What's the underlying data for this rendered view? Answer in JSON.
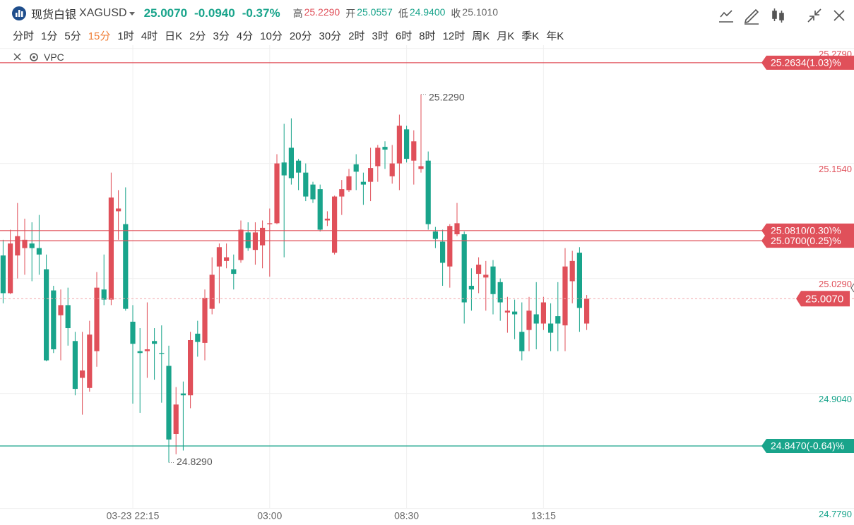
{
  "header": {
    "symbol_name": "现货白银",
    "symbol": "XAGUSD",
    "price": "25.0070",
    "change": "-0.0940",
    "change_pct": "-0.37%",
    "stats": [
      {
        "label": "高",
        "value": "25.2290",
        "color": "#e0505a"
      },
      {
        "label": "开",
        "value": "25.0557",
        "color": "#19a48b"
      },
      {
        "label": "低",
        "value": "24.9400",
        "color": "#19a48b"
      },
      {
        "label": "收",
        "value": "25.1010",
        "color": "#666666"
      }
    ]
  },
  "timeframes": [
    "分时",
    "1分",
    "5分",
    "15分",
    "1时",
    "4时",
    "日K",
    "2分",
    "3分",
    "4分",
    "10分",
    "20分",
    "30分",
    "2时",
    "3时",
    "6时",
    "8时",
    "12时",
    "周K",
    "月K",
    "季K",
    "年K"
  ],
  "active_timeframe": 3,
  "indicator": "VPC",
  "chart_data": {
    "type": "candlestick",
    "up_color": "#e0505a",
    "down_color": "#19a48b",
    "grid": true,
    "categories": [
      null,
      null,
      null,
      null,
      null,
      null,
      null,
      null,
      null,
      null,
      null,
      null,
      null,
      null,
      null,
      null,
      null,
      null,
      "03-23 22:15",
      null,
      null,
      null,
      null,
      null,
      null,
      null,
      null,
      null,
      null,
      null,
      null,
      null,
      null,
      null,
      null,
      null,
      null,
      "03:00",
      null,
      null,
      null,
      null,
      null,
      null,
      null,
      null,
      null,
      null,
      null,
      null,
      null,
      null,
      null,
      null,
      null,
      null,
      "08:30",
      null,
      null,
      null,
      null,
      null,
      null,
      null,
      null,
      null,
      null,
      null,
      null,
      null,
      null,
      null,
      null,
      null,
      null,
      "13:15",
      null,
      null,
      null,
      null,
      null,
      null
    ],
    "open": [
      25.054,
      25.013,
      25.054,
      25.062,
      25.067,
      25.062,
      25.039,
      25.016,
      24.989,
      25.0,
      24.961,
      24.921,
      24.91,
      24.95,
      25.017,
      25.006,
      25.102,
      25.088,
      24.982,
      24.95,
      24.95,
      24.961,
      24.948,
      24.934,
      24.86,
      24.904,
      24.902,
      24.969,
      24.959,
      24.996,
      25.042,
      25.048,
      25.039,
      25.049,
      25.079,
      25.06,
      25.065,
      25.088,
      25.089,
      25.155,
      25.171,
      25.157,
      25.144,
      25.131,
      25.126,
      25.092,
      25.057,
      25.118,
      25.125,
      25.153,
      25.134,
      25.134,
      25.151,
      25.172,
      25.14,
      25.154,
      25.191,
      25.157,
      25.148,
      25.157,
      25.08,
      25.069,
      25.042,
      25.077,
      25.077,
      25.021,
      25.034,
      25.03,
      25.042,
      25.025,
      24.992,
      24.993,
      24.971,
      24.973,
      24.99,
      24.98,
      24.98,
      24.988,
      24.978,
      25.026,
      25.057,
      24.98
    ],
    "high": [
      25.071,
      25.082,
      25.111,
      25.094,
      25.09,
      25.098,
      25.055,
      25.021,
      25.017,
      25.019,
      24.971,
      24.971,
      24.983,
      25.036,
      25.055,
      25.144,
      25.125,
      25.128,
      25.0,
      24.975,
      25.003,
      24.975,
      24.978,
      24.956,
      24.911,
      24.917,
      24.971,
      24.983,
      25.017,
      25.052,
      25.067,
      25.067,
      25.055,
      25.092,
      25.09,
      25.09,
      25.092,
      25.105,
      25.164,
      25.197,
      25.203,
      25.159,
      25.154,
      25.134,
      25.131,
      25.102,
      25.119,
      25.136,
      25.148,
      25.164,
      25.144,
      25.171,
      25.174,
      25.178,
      25.174,
      25.207,
      25.195,
      25.19,
      25.229,
      25.167,
      25.085,
      25.082,
      25.088,
      25.111,
      25.08,
      25.04,
      25.052,
      25.048,
      25.049,
      25.029,
      25.009,
      25.006,
      25.003,
      25.009,
      25.025,
      25.009,
      25.002,
      25.025,
      25.062,
      25.059,
      25.063,
      25.011
    ],
    "low": [
      25.002,
      25.012,
      25.029,
      25.033,
      25.026,
      25.033,
      24.939,
      24.948,
      24.94,
      24.956,
      24.902,
      24.881,
      24.906,
      24.933,
      25.0,
      25.0,
      25.071,
      24.994,
      24.893,
      24.883,
      24.921,
      24.919,
      24.894,
      24.829,
      24.838,
      24.842,
      24.888,
      24.944,
      24.94,
      24.99,
      25.002,
      25.04,
      25.017,
      25.046,
      25.059,
      25.044,
      25.04,
      25.031,
      25.088,
      25.052,
      25.131,
      25.125,
      25.113,
      25.111,
      25.08,
      25.086,
      25.055,
      25.098,
      25.123,
      25.125,
      25.109,
      25.113,
      25.134,
      25.148,
      25.132,
      25.125,
      25.155,
      25.131,
      25.144,
      25.082,
      25.062,
      25.021,
      25.019,
      25.075,
      24.98,
      24.994,
      25.013,
      24.994,
      24.99,
      24.983,
      24.97,
      24.963,
      24.94,
      24.95,
      24.952,
      24.973,
      24.95,
      24.95,
      24.95,
      25.002,
      24.971,
      24.973
    ],
    "close": [
      25.013,
      25.067,
      25.075,
      25.071,
      25.062,
      25.055,
      24.94,
      24.952,
      25.0,
      24.975,
      24.909,
      24.929,
      24.968,
      25.019,
      25.006,
      25.117,
      25.105,
      24.996,
      24.958,
      24.948,
      24.952,
      24.958,
      24.947,
      24.854,
      24.892,
      24.902,
      24.962,
      24.96,
      25.008,
      25.033,
      25.063,
      25.052,
      25.034,
      25.082,
      25.062,
      25.079,
      25.084,
      25.089,
      25.154,
      25.141,
      25.138,
      25.144,
      25.118,
      25.115,
      25.082,
      25.094,
      25.118,
      25.126,
      25.14,
      25.145,
      25.131,
      25.149,
      25.171,
      25.169,
      25.154,
      25.195,
      25.159,
      25.178,
      25.151,
      25.088,
      25.072,
      25.046,
      25.086,
      25.089,
      25.003,
      25.017,
      25.044,
      25.033,
      25.012,
      25.003,
      24.994,
      24.99,
      24.95,
      24.994,
      24.98,
      25.003,
      24.97,
      24.98,
      25.042,
      25.048,
      24.997,
      25.007
    ],
    "ylim": [
      24.7795,
      25.2825
    ],
    "yticks": [
      {
        "value": 25.279,
        "label": "25.2790"
      },
      {
        "value": 25.154,
        "label": "25.1540"
      },
      {
        "value": 25.029,
        "label": "25.0290"
      },
      {
        "value": 24.904,
        "label": "24.9040"
      },
      {
        "value": 24.779,
        "label": "24.7790"
      }
    ],
    "price_lines": [
      {
        "value": 25.2634,
        "label": "25.2634(1.03)%",
        "color": "#e0505a"
      },
      {
        "value": 25.081,
        "label": "25.0810(0.30)%",
        "color": "#e0505a"
      },
      {
        "value": 25.07,
        "label": "25.0700(0.25)%",
        "color": "#e0505a"
      },
      {
        "value": 24.847,
        "label": "24.8470(-0.64)%",
        "color": "#19a48b"
      }
    ],
    "last_price": {
      "value": 25.007,
      "label": "25.0070",
      "color": "#e0505a"
    },
    "max_marker": {
      "value": 25.229,
      "label": "25.2290"
    },
    "min_marker": {
      "value": 24.829,
      "label": "24.8290"
    }
  }
}
